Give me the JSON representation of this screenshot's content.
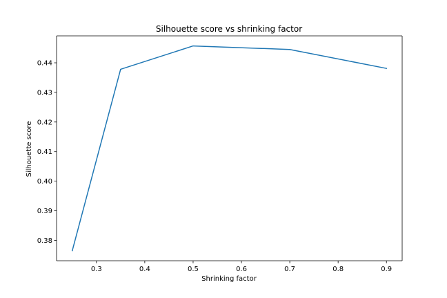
{
  "chart_data": {
    "type": "line",
    "title": "Silhouette score vs shrinking factor",
    "xlabel": "Shrinking factor",
    "ylabel": "Silhouette score",
    "x": [
      0.25,
      0.35,
      0.5,
      0.7,
      0.9
    ],
    "series": [
      {
        "values": [
          0.3765,
          0.4378,
          0.4457,
          0.4445,
          0.4381
        ],
        "color": "#1f77b4"
      }
    ],
    "xlim": [
      0.2175,
      0.9325
    ],
    "ylim": [
      0.3731,
      0.4491
    ],
    "xticks": [
      0.3,
      0.4,
      0.5,
      0.6,
      0.7,
      0.8,
      0.9
    ],
    "xtick_labels": [
      "0.3",
      "0.4",
      "0.5",
      "0.6",
      "0.7",
      "0.8",
      "0.9"
    ],
    "yticks": [
      0.38,
      0.39,
      0.4,
      0.41,
      0.42,
      0.43,
      0.44
    ],
    "ytick_labels": [
      "0.38",
      "0.39",
      "0.40",
      "0.41",
      "0.42",
      "0.43",
      "0.44"
    ],
    "grid": false,
    "legend": "none"
  }
}
